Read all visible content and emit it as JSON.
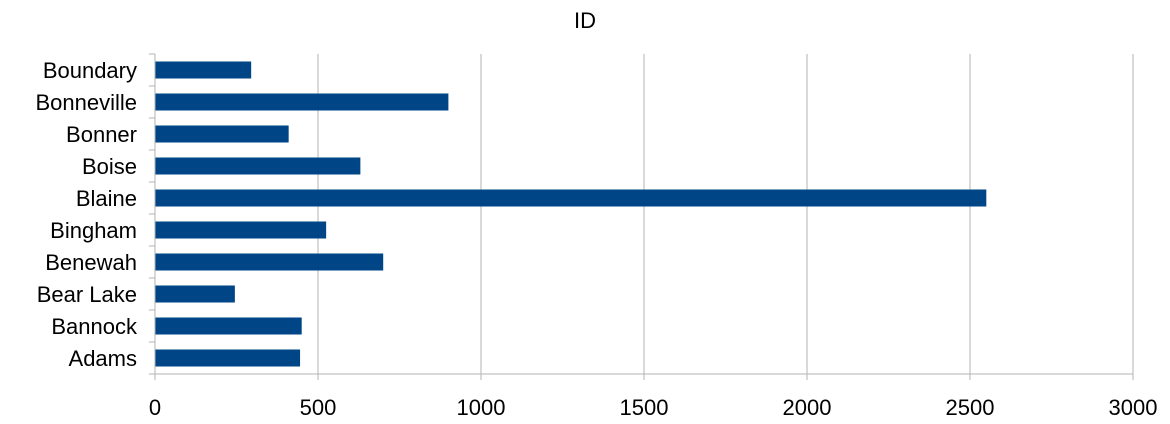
{
  "chart_data": {
    "type": "bar",
    "orientation": "horizontal",
    "title": "ID",
    "xlabel": "",
    "ylabel": "",
    "categories": [
      "Boundary",
      "Bonneville",
      "Bonner",
      "Boise",
      "Blaine",
      "Bingham",
      "Benewah",
      "Bear Lake",
      "Bannock",
      "Adams"
    ],
    "values": [
      295,
      900,
      410,
      630,
      2550,
      525,
      700,
      245,
      450,
      445
    ],
    "xlim": [
      0,
      3000
    ],
    "xticks": [
      "0",
      "500",
      "1000",
      "1500",
      "2000",
      "2500",
      "3000"
    ],
    "grid": true,
    "bar_color": "#004586",
    "grid_color": "#b3b3b3",
    "axis_color": "#b3b3b3"
  }
}
